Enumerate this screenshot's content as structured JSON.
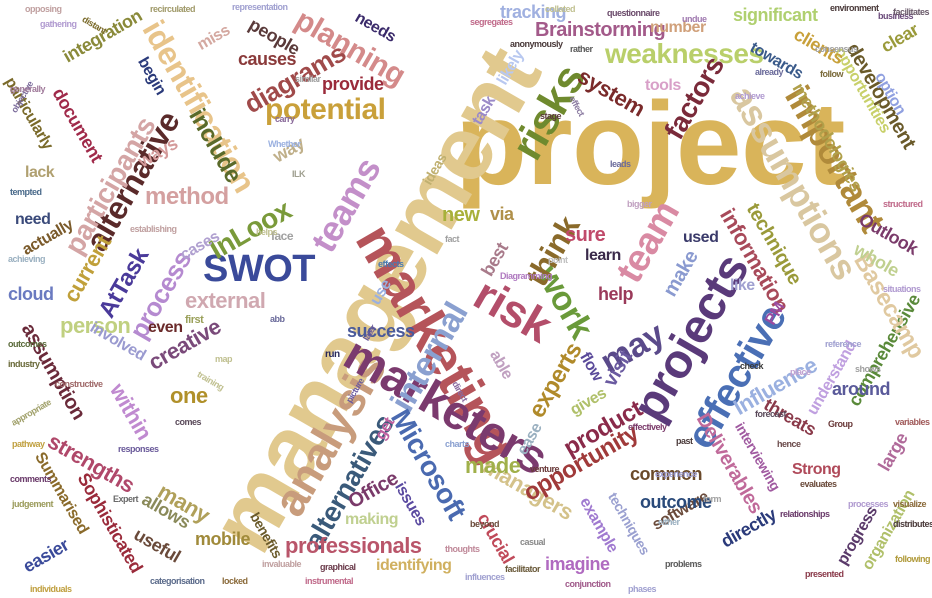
{
  "words": [
    {
      "text": "project",
      "color": "#d9b45a"
    },
    {
      "text": "management",
      "color": "#e1c98e"
    },
    {
      "text": "marketing",
      "color": "#b5545a"
    },
    {
      "text": "analysis",
      "color": "#c89c7c"
    },
    {
      "text": "marketers",
      "color": "#7b3a6e"
    },
    {
      "text": "risk",
      "color": "#b34e6a"
    },
    {
      "text": "projects",
      "color": "#5a3a7a"
    },
    {
      "text": "effective",
      "color": "#4a6fb5"
    },
    {
      "text": "risks",
      "color": "#6f8a2e"
    },
    {
      "text": "teams",
      "color": "#c38fc9"
    },
    {
      "text": "team",
      "color": "#d98aa3"
    },
    {
      "text": "internal",
      "color": "#8aa0d0"
    },
    {
      "text": "SWOT",
      "color": "#3a4a9a"
    },
    {
      "text": "identification",
      "color": "#e8c48a"
    },
    {
      "text": "important",
      "color": "#b08a3a"
    },
    {
      "text": "assumptions",
      "color": "#d9c7a0"
    },
    {
      "text": "Microsoft",
      "color": "#4a6ab0"
    },
    {
      "text": "work",
      "color": "#6a9a3a"
    },
    {
      "text": "think",
      "color": "#8a6a2a"
    },
    {
      "text": "may",
      "color": "#5a4a8a"
    },
    {
      "text": "alternatives",
      "color": "#3a5a7a"
    },
    {
      "text": "alternative",
      "color": "#5a2a2a"
    },
    {
      "text": "participants",
      "color": "#d4a5a5"
    },
    {
      "text": "potential",
      "color": "#c9a03a"
    },
    {
      "text": "planning",
      "color": "#d48a8a"
    },
    {
      "text": "weaknesses",
      "color": "#b9cf6a"
    },
    {
      "text": "Brainstorming",
      "color": "#a35a8a"
    },
    {
      "text": "factors",
      "color": "#7a2a3a"
    },
    {
      "text": "system",
      "color": "#7a2a2a"
    },
    {
      "text": "diagrams",
      "color": "#a04a4a"
    },
    {
      "text": "include",
      "color": "#5a6a2a"
    },
    {
      "text": "method",
      "color": "#d4a0a0"
    },
    {
      "text": "InLoox",
      "color": "#7a9a3a"
    },
    {
      "text": "process",
      "color": "#b58ad0"
    },
    {
      "text": "AtTask",
      "color": "#4a3a9a"
    },
    {
      "text": "external",
      "color": "#d0a8b0"
    },
    {
      "text": "creative",
      "color": "#7a4a7a"
    },
    {
      "text": "professionals",
      "color": "#b9556a"
    },
    {
      "text": "managers",
      "color": "#d4c28a"
    },
    {
      "text": "strengths",
      "color": "#b0486a"
    },
    {
      "text": "opportunity",
      "color": "#a03a3a"
    },
    {
      "text": "product",
      "color": "#8a2a4a"
    },
    {
      "text": "Deliverables",
      "color": "#c06a9a"
    },
    {
      "text": "information",
      "color": "#a84a5a"
    },
    {
      "text": "technique",
      "color": "#9a9a3a"
    },
    {
      "text": "methodologies",
      "color": "#b0a04a"
    },
    {
      "text": "development",
      "color": "#6a5a2a"
    },
    {
      "text": "opportunities",
      "color": "#c8d06a"
    },
    {
      "text": "comprehensive",
      "color": "#5a8a3a"
    },
    {
      "text": "Basecamp",
      "color": "#e0c9a0"
    },
    {
      "text": "Influence",
      "color": "#9ab0e0"
    },
    {
      "text": "experts",
      "color": "#b08a2a"
    },
    {
      "text": "made",
      "color": "#a0b04a"
    },
    {
      "text": "many",
      "color": "#b0a05a"
    },
    {
      "text": "within",
      "color": "#c08ad0"
    },
    {
      "text": "one",
      "color": "#b0902a"
    },
    {
      "text": "person",
      "color": "#c0d080"
    },
    {
      "text": "current",
      "color": "#c0a03a"
    },
    {
      "text": "assumption",
      "color": "#6a2a3a"
    },
    {
      "text": "cloud",
      "color": "#6a7ac0"
    },
    {
      "text": "actually",
      "color": "#7a5a2a"
    },
    {
      "text": "need",
      "color": "#3a4a7a"
    },
    {
      "text": "lack",
      "color": "#b0a070"
    },
    {
      "text": "particularly",
      "color": "#7a6a2a"
    },
    {
      "text": "document",
      "color": "#a02a4a"
    },
    {
      "text": "integration",
      "color": "#8a8a3a"
    },
    {
      "text": "causes",
      "color": "#8a3a3a"
    },
    {
      "text": "people",
      "color": "#5a3a3a"
    },
    {
      "text": "provide",
      "color": "#9a2a3a"
    },
    {
      "text": "tracking",
      "color": "#a0b0e0"
    },
    {
      "text": "significant",
      "color": "#b0d070"
    },
    {
      "text": "clients",
      "color": "#c8a03a"
    },
    {
      "text": "towards",
      "color": "#3a5a8a"
    },
    {
      "text": "tools",
      "color": "#d8a0c8"
    },
    {
      "text": "number",
      "color": "#d0a07a"
    },
    {
      "text": "task",
      "color": "#9a8ac8"
    },
    {
      "text": "likely",
      "color": "#b8c8f0"
    },
    {
      "text": "needs",
      "color": "#3a2a6a"
    },
    {
      "text": "miss",
      "color": "#d4a8a0"
    },
    {
      "text": "begin",
      "color": "#2a3a7a"
    },
    {
      "text": "ways",
      "color": "#d49a9a"
    },
    {
      "text": "way",
      "color": "#c0b08a"
    },
    {
      "text": "cases",
      "color": "#b0a0d0"
    },
    {
      "text": "new",
      "color": "#a8b03a"
    },
    {
      "text": "via",
      "color": "#b0904a"
    },
    {
      "text": "best",
      "color": "#a87a8a"
    },
    {
      "text": "sure",
      "color": "#c04a6a"
    },
    {
      "text": "learn",
      "color": "#3a2a4a"
    },
    {
      "text": "help",
      "color": "#9a3a5a"
    },
    {
      "text": "make",
      "color": "#8a9ad0"
    },
    {
      "text": "visit",
      "color": "#6a5aa0"
    },
    {
      "text": "used",
      "color": "#3a3a6a"
    },
    {
      "text": "like",
      "color": "#a0a0d0"
    },
    {
      "text": "Outlook",
      "color": "#7a3a6a"
    },
    {
      "text": "whole",
      "color": "#c0d090"
    },
    {
      "text": "clear",
      "color": "#9a9a3a"
    },
    {
      "text": "option",
      "color": "#90a0e0"
    },
    {
      "text": "PM",
      "color": "#9a4aa0"
    },
    {
      "text": "understand",
      "color": "#c0a0e0"
    },
    {
      "text": "around",
      "color": "#5a5a9a"
    },
    {
      "text": "threats",
      "color": "#8a3a4a"
    },
    {
      "text": "interviewing",
      "color": "#a05aa0"
    },
    {
      "text": "large",
      "color": "#b06a9a"
    },
    {
      "text": "Strong",
      "color": "#b04a5a"
    },
    {
      "text": "progress",
      "color": "#5a3a6a"
    },
    {
      "text": "organization",
      "color": "#b0c06a"
    },
    {
      "text": "directly",
      "color": "#2a3a7a"
    },
    {
      "text": "software",
      "color": "#6a4a3a"
    },
    {
      "text": "common",
      "color": "#6a4a2a"
    },
    {
      "text": "outcome",
      "color": "#2a4a7a"
    },
    {
      "text": "example",
      "color": "#a07ad0"
    },
    {
      "text": "imagine",
      "color": "#b06ac0"
    },
    {
      "text": "identifying",
      "color": "#d0b060"
    },
    {
      "text": "crucial",
      "color": "#c04a5a"
    },
    {
      "text": "ease",
      "color": "#9ab0c0"
    },
    {
      "text": "gives",
      "color": "#b0c06a"
    },
    {
      "text": "techniques",
      "color": "#9aa0d0"
    },
    {
      "text": "flow",
      "color": "#5a4a9a"
    },
    {
      "text": "success",
      "color": "#4a5a9a"
    },
    {
      "text": "able",
      "color": "#c0a0c0"
    },
    {
      "text": "Office",
      "color": "#7a3a6a"
    },
    {
      "text": "making",
      "color": "#c0d090"
    },
    {
      "text": "issues",
      "color": "#5a4aa0"
    },
    {
      "text": "get",
      "color": "#c060a0"
    },
    {
      "text": "use",
      "color": "#9ab0e0"
    },
    {
      "text": "benefits",
      "color": "#6a5a2a"
    },
    {
      "text": "mobile",
      "color": "#a08a3a"
    },
    {
      "text": "useful",
      "color": "#6a4a3a"
    },
    {
      "text": "allows",
      "color": "#8a8a5a"
    },
    {
      "text": "Sophisticated",
      "color": "#9a2a3a"
    },
    {
      "text": "Summarised",
      "color": "#8a6a2a"
    },
    {
      "text": "easier",
      "color": "#3a4a9a"
    },
    {
      "text": "involved",
      "color": "#9a9ad0"
    },
    {
      "text": "even",
      "color": "#6a2a2a"
    },
    {
      "text": "ideas",
      "color": "#c0b070"
    },
    {
      "text": "first",
      "color": "#9aa05a"
    },
    {
      "text": "face",
      "color": "#a0a0a0"
    },
    {
      "text": "recirculated",
      "color": "#a09a6a"
    },
    {
      "text": "representation",
      "color": "#a0a0d0"
    },
    {
      "text": "questionnaire",
      "color": "#6a4a6a"
    },
    {
      "text": "environment",
      "color": "#4a3a3a"
    },
    {
      "text": "business",
      "color": "#6a4a7a"
    },
    {
      "text": "distant",
      "color": "#7a6a2a"
    },
    {
      "text": "anonymously",
      "color": "#4a3a3a"
    },
    {
      "text": "similar",
      "color": "#a0a0a0"
    },
    {
      "text": "already",
      "color": "#6a6a9a"
    },
    {
      "text": "achieve",
      "color": "#b09ad0"
    },
    {
      "text": "stage",
      "color": "#5a3a3a"
    },
    {
      "text": "effect",
      "color": "#8a7aa0"
    },
    {
      "text": "helps",
      "color": "#c0c090"
    },
    {
      "text": "establishing",
      "color": "#c0a0a0"
    },
    {
      "text": "tempted",
      "color": "#4a6a8a"
    },
    {
      "text": "objective",
      "color": "#7a6a9a"
    },
    {
      "text": "effects",
      "color": "#4a7ab0"
    },
    {
      "text": "later",
      "color": "#6a5a9a"
    },
    {
      "text": "run",
      "color": "#2a2a5a"
    },
    {
      "text": "picture",
      "color": "#6a5aa0"
    },
    {
      "text": "training",
      "color": "#c0c090"
    },
    {
      "text": "comes",
      "color": "#5a4a5a"
    },
    {
      "text": "direct",
      "color": "#8a6aa0"
    },
    {
      "text": "charts",
      "color": "#8aa0d0"
    },
    {
      "text": "thoughts",
      "color": "#c08a9a"
    },
    {
      "text": "graphical",
      "color": "#6a3a4a"
    },
    {
      "text": "instrumental",
      "color": "#c06a8a"
    },
    {
      "text": "influences",
      "color": "#a0a0d0"
    },
    {
      "text": "facilitator",
      "color": "#6a5a3a"
    },
    {
      "text": "conjunction",
      "color": "#a05a8a"
    },
    {
      "text": "problems",
      "color": "#5a5a5a"
    },
    {
      "text": "categorisation",
      "color": "#5a6a8a"
    },
    {
      "text": "individuals",
      "color": "#c0a040"
    },
    {
      "text": "comments",
      "color": "#6a3a6a"
    },
    {
      "text": "appropriate",
      "color": "#a0a06a"
    },
    {
      "text": "industry",
      "color": "#6a6a3a"
    },
    {
      "text": "responses",
      "color": "#6a5a9a"
    },
    {
      "text": "Expert",
      "color": "#6a6a6a"
    },
    {
      "text": "presented",
      "color": "#8a3a4a"
    },
    {
      "text": "check",
      "color": "#3a3a3a"
    },
    {
      "text": "place",
      "color": "#c0a0d0"
    },
    {
      "text": "forecast",
      "color": "#5a4a5a"
    },
    {
      "text": "hence",
      "color": "#6a4a4a"
    },
    {
      "text": "Group",
      "color": "#6a3a3a"
    },
    {
      "text": "variables",
      "color": "#a05a5a"
    },
    {
      "text": "past",
      "color": "#4a3a3a"
    },
    {
      "text": "effectively",
      "color": "#7a3a6a"
    },
    {
      "text": "experience",
      "color": "#9a9ad0"
    },
    {
      "text": "either",
      "color": "#9ab0c0"
    },
    {
      "text": "venture",
      "color": "#6a3a3a"
    },
    {
      "text": "casual",
      "color": "#8a8a8a"
    },
    {
      "text": "Whether",
      "color": "#9ab0e0"
    },
    {
      "text": "fact",
      "color": "#a0a0a0"
    },
    {
      "text": "collated",
      "color": "#c0c090"
    },
    {
      "text": "rather",
      "color": "#5a5a5a"
    },
    {
      "text": "undue",
      "color": "#a07ab0"
    },
    {
      "text": "reference",
      "color": "#a0a0d0"
    },
    {
      "text": "follow",
      "color": "#7a6a3a"
    },
    {
      "text": "consensus",
      "color": "#a0a0a0"
    },
    {
      "text": "segregates",
      "color": "#c06a8a"
    },
    {
      "text": "facilitates",
      "color": "#6a5a6a"
    },
    {
      "text": "generally",
      "color": "#a07a9a"
    },
    {
      "text": "situations",
      "color": "#b09ad0"
    },
    {
      "text": "leads",
      "color": "#6a6a9a"
    },
    {
      "text": "Diagramming",
      "color": "#b07ac0"
    },
    {
      "text": "distributes",
      "color": "#4a3a3a"
    },
    {
      "text": "following",
      "color": "#b09a3a"
    },
    {
      "text": "visualize",
      "color": "#8a6a3a"
    },
    {
      "text": "structured",
      "color": "#c06a8a"
    },
    {
      "text": "achieving",
      "color": "#9ab0c0"
    },
    {
      "text": "outcomes",
      "color": "#5a6a3a"
    },
    {
      "text": "evaluates",
      "color": "#6a4a3a"
    },
    {
      "text": "processes",
      "color": "#b09ad0"
    },
    {
      "text": "relationships",
      "color": "#6a3a6a"
    },
    {
      "text": "beyond",
      "color": "#6a4a3a"
    },
    {
      "text": "invaluable",
      "color": "#c0a0a0"
    },
    {
      "text": "locked",
      "color": "#8a6a3a"
    },
    {
      "text": "phases",
      "color": "#a0a0d0"
    },
    {
      "text": "bigger",
      "color": "#c0a0c0"
    },
    {
      "text": "point",
      "color": "#c0c0c0"
    },
    {
      "text": "ILK",
      "color": "#a0a090"
    },
    {
      "text": "carry",
      "color": "#8a6a9a"
    },
    {
      "text": "abb",
      "color": "#6a6a9a"
    },
    {
      "text": "map",
      "color": "#c0c090"
    },
    {
      "text": "shows",
      "color": "#a0a0a0"
    },
    {
      "text": "form",
      "color": "#a0a0a0"
    },
    {
      "text": "gathering",
      "color": "#b09ad0"
    },
    {
      "text": "opposing",
      "color": "#c0a0a0"
    },
    {
      "text": "constructive",
      "color": "#a06a6a"
    },
    {
      "text": "judgement",
      "color": "#9a9a5a"
    },
    {
      "text": "pathway",
      "color": "#c0a040"
    }
  ]
}
